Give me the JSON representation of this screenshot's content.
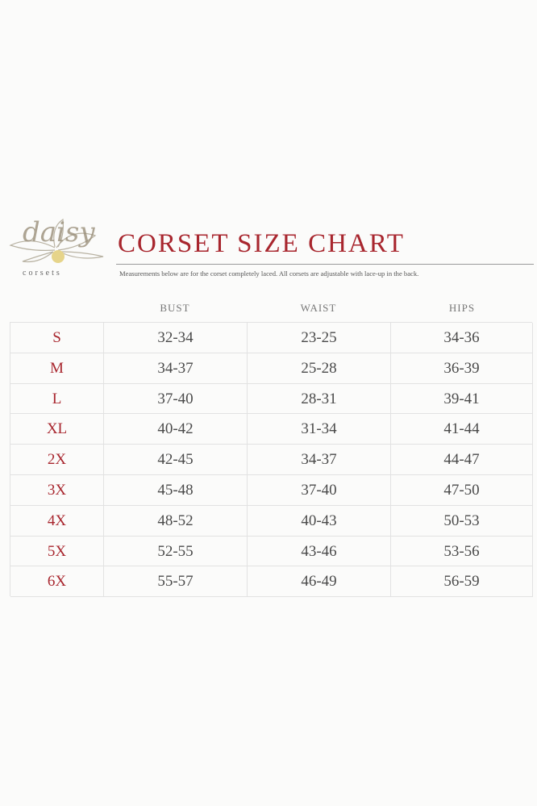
{
  "logo": {
    "name": "daisy",
    "tagline": "corsets"
  },
  "header": {
    "title": "CORSET SIZE CHART",
    "note": "Measurements below are for the corset completely laced.  All corsets are adjustable with lace-up in the back."
  },
  "table": {
    "columns": [
      "BUST",
      "WAIST",
      "HIPS"
    ],
    "rows": [
      [
        "S",
        "32-34",
        "23-25",
        "34-36"
      ],
      [
        "M",
        "34-37",
        "25-28",
        "36-39"
      ],
      [
        "L",
        "37-40",
        "28-31",
        "39-41"
      ],
      [
        "XL",
        "40-42",
        "31-34",
        "41-44"
      ],
      [
        "2X",
        "42-45",
        "34-37",
        "44-47"
      ],
      [
        "3X",
        "45-48",
        "37-40",
        "47-50"
      ],
      [
        "4X",
        "48-52",
        "40-43",
        "50-53"
      ],
      [
        "5X",
        "52-55",
        "43-46",
        "53-56"
      ],
      [
        "6X",
        "55-57",
        "46-49",
        "56-59"
      ]
    ]
  }
}
